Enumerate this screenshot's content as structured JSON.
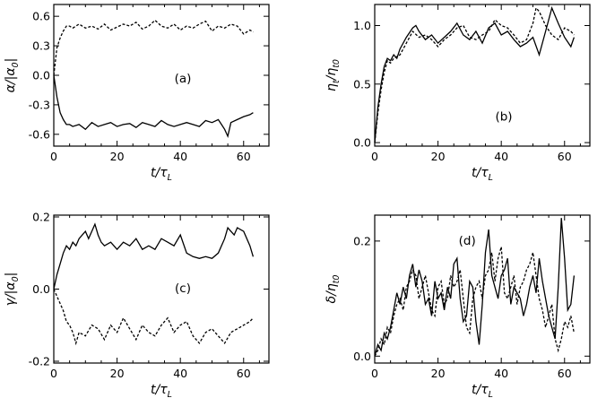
{
  "chart_data": [
    {
      "type": "line",
      "panel_label": "(a)",
      "xlabel": {
        "main": "t/τ",
        "sub": "L"
      },
      "ylabel": {
        "main": "α/|α",
        "sub": "0",
        "tail": "|"
      },
      "xlim": [
        0,
        68
      ],
      "ylim": [
        -0.72,
        0.72
      ],
      "xticks": [
        0,
        20,
        40,
        60
      ],
      "xtick_labels": [
        "0",
        "20",
        "40",
        "60"
      ],
      "yticks": [
        0.6,
        0.3,
        0.0,
        -0.3,
        -0.6
      ],
      "ytick_labels": [
        "0.6",
        "0.3",
        "0.0",
        "-0.3",
        "-0.6"
      ],
      "series": [
        {
          "style": "solid",
          "x": [
            0,
            1,
            2,
            3,
            4,
            5,
            6,
            8,
            10,
            12,
            14,
            16,
            18,
            20,
            22,
            24,
            26,
            28,
            30,
            32,
            34,
            36,
            38,
            40,
            42,
            44,
            46,
            48,
            50,
            52,
            53,
            54,
            55,
            56,
            58,
            60,
            62,
            63
          ],
          "y": [
            0,
            -0.22,
            -0.38,
            -0.45,
            -0.5,
            -0.5,
            -0.52,
            -0.5,
            -0.55,
            -0.48,
            -0.52,
            -0.5,
            -0.48,
            -0.52,
            -0.5,
            -0.49,
            -0.53,
            -0.48,
            -0.5,
            -0.52,
            -0.46,
            -0.5,
            -0.52,
            -0.5,
            -0.48,
            -0.5,
            -0.52,
            -0.46,
            -0.48,
            -0.45,
            -0.5,
            -0.55,
            -0.62,
            -0.48,
            -0.45,
            -0.42,
            -0.4,
            -0.38
          ]
        },
        {
          "style": "dashed",
          "x": [
            0,
            1,
            2,
            3,
            4,
            5,
            6,
            8,
            10,
            12,
            14,
            16,
            18,
            20,
            22,
            24,
            26,
            28,
            30,
            32,
            34,
            36,
            38,
            40,
            42,
            44,
            46,
            48,
            50,
            52,
            54,
            56,
            58,
            60,
            62,
            63
          ],
          "y": [
            0,
            0.28,
            0.38,
            0.45,
            0.5,
            0.5,
            0.48,
            0.52,
            0.48,
            0.5,
            0.47,
            0.52,
            0.46,
            0.49,
            0.52,
            0.5,
            0.54,
            0.47,
            0.5,
            0.56,
            0.5,
            0.48,
            0.52,
            0.46,
            0.5,
            0.48,
            0.52,
            0.55,
            0.45,
            0.5,
            0.48,
            0.52,
            0.5,
            0.42,
            0.46,
            0.44
          ]
        }
      ]
    },
    {
      "type": "line",
      "panel_label": "(b)",
      "xlabel": {
        "main": "t/τ",
        "sub": "L"
      },
      "ylabel": {
        "main": "η",
        "sub": "t",
        "tail": "/η",
        "sub2": "t0"
      },
      "xlim": [
        0,
        68
      ],
      "ylim": [
        -0.03,
        1.18
      ],
      "xticks": [
        0,
        20,
        40,
        60
      ],
      "xtick_labels": [
        "0",
        "20",
        "40",
        "60"
      ],
      "yticks": [
        1.0,
        0.5,
        0.0
      ],
      "ytick_labels": [
        "1.0",
        "0.5",
        "0.0"
      ],
      "series": [
        {
          "style": "solid",
          "x": [
            0,
            1,
            2,
            3,
            4,
            5,
            6,
            7,
            8,
            10,
            12,
            13,
            14,
            16,
            18,
            20,
            22,
            24,
            26,
            28,
            30,
            32,
            34,
            36,
            38,
            40,
            42,
            44,
            46,
            48,
            50,
            52,
            54,
            55,
            56,
            58,
            60,
            62,
            63
          ],
          "y": [
            0,
            0.3,
            0.5,
            0.65,
            0.72,
            0.7,
            0.75,
            0.72,
            0.8,
            0.9,
            0.98,
            1.0,
            0.95,
            0.88,
            0.92,
            0.85,
            0.9,
            0.95,
            1.02,
            0.92,
            0.88,
            0.95,
            0.85,
            0.98,
            1.02,
            0.92,
            0.95,
            0.88,
            0.82,
            0.85,
            0.9,
            0.75,
            0.95,
            1.05,
            1.15,
            1.02,
            0.9,
            0.82,
            0.9
          ]
        },
        {
          "style": "dashed",
          "x": [
            0,
            1,
            2,
            3,
            4,
            5,
            6,
            8,
            10,
            12,
            14,
            16,
            18,
            20,
            22,
            24,
            26,
            28,
            30,
            32,
            34,
            36,
            38,
            40,
            42,
            44,
            46,
            48,
            50,
            51,
            52,
            54,
            56,
            58,
            60,
            62,
            63
          ],
          "y": [
            0,
            0.25,
            0.45,
            0.6,
            0.7,
            0.68,
            0.72,
            0.75,
            0.85,
            0.95,
            0.9,
            0.92,
            0.88,
            0.82,
            0.88,
            0.92,
            0.98,
            1.0,
            0.9,
            0.88,
            0.92,
            0.95,
            1.05,
            1.0,
            0.98,
            0.92,
            0.85,
            0.88,
            1.02,
            1.15,
            1.12,
            1.0,
            0.92,
            0.88,
            0.98,
            0.95,
            0.92
          ]
        }
      ]
    },
    {
      "type": "line",
      "panel_label": "(c)",
      "xlabel": {
        "main": "t/τ",
        "sub": "L"
      },
      "ylabel": {
        "main": "γ/|α",
        "sub": "0",
        "tail": "|"
      },
      "xlim": [
        0,
        68
      ],
      "ylim": [
        -0.205,
        0.205
      ],
      "xticks": [
        0,
        20,
        40,
        60
      ],
      "xtick_labels": [
        "0",
        "20",
        "40",
        "60"
      ],
      "yticks": [
        0.2,
        0.0,
        -0.2
      ],
      "ytick_labels": [
        "0.2",
        "0.0",
        "-0.2"
      ],
      "series": [
        {
          "style": "solid",
          "x": [
            0,
            1,
            2,
            3,
            4,
            5,
            6,
            7,
            8,
            9,
            10,
            11,
            12,
            13,
            14,
            15,
            16,
            18,
            20,
            22,
            24,
            26,
            28,
            30,
            32,
            34,
            36,
            38,
            40,
            42,
            44,
            46,
            48,
            50,
            52,
            54,
            55,
            56,
            57,
            58,
            60,
            62,
            63
          ],
          "y": [
            0,
            0.04,
            0.07,
            0.1,
            0.12,
            0.11,
            0.13,
            0.12,
            0.14,
            0.15,
            0.16,
            0.14,
            0.16,
            0.18,
            0.15,
            0.13,
            0.12,
            0.13,
            0.11,
            0.13,
            0.12,
            0.14,
            0.11,
            0.12,
            0.11,
            0.14,
            0.13,
            0.12,
            0.15,
            0.1,
            0.09,
            0.085,
            0.09,
            0.085,
            0.1,
            0.14,
            0.17,
            0.16,
            0.15,
            0.17,
            0.16,
            0.12,
            0.09
          ]
        },
        {
          "style": "dashed",
          "x": [
            0,
            1,
            2,
            3,
            4,
            5,
            6,
            7,
            8,
            10,
            12,
            14,
            16,
            18,
            20,
            22,
            24,
            26,
            28,
            30,
            32,
            34,
            36,
            38,
            40,
            42,
            44,
            46,
            48,
            50,
            52,
            54,
            56,
            58,
            60,
            62,
            63
          ],
          "y": [
            0,
            -0.02,
            -0.04,
            -0.06,
            -0.09,
            -0.1,
            -0.12,
            -0.15,
            -0.12,
            -0.13,
            -0.1,
            -0.11,
            -0.14,
            -0.1,
            -0.12,
            -0.08,
            -0.11,
            -0.14,
            -0.1,
            -0.12,
            -0.13,
            -0.1,
            -0.08,
            -0.12,
            -0.1,
            -0.09,
            -0.13,
            -0.15,
            -0.12,
            -0.11,
            -0.13,
            -0.15,
            -0.12,
            -0.11,
            -0.1,
            -0.09,
            -0.08
          ]
        }
      ]
    },
    {
      "type": "line",
      "panel_label": "(d)",
      "xlabel": {
        "main": "t/τ",
        "sub": "L"
      },
      "ylabel": {
        "main": "δ/η",
        "sub": "t0",
        "tail": ""
      },
      "xlim": [
        0,
        68
      ],
      "ylim": [
        -0.012,
        0.245
      ],
      "xticks": [
        0,
        20,
        40,
        60
      ],
      "xtick_labels": [
        "0",
        "20",
        "40",
        "60"
      ],
      "yticks": [
        0.2,
        0.0
      ],
      "ytick_labels": [
        "0.2",
        "0.0"
      ],
      "series": [
        {
          "style": "solid",
          "x": [
            0,
            1,
            2,
            3,
            4,
            5,
            6,
            7,
            8,
            9,
            10,
            11,
            12,
            13,
            14,
            15,
            16,
            17,
            18,
            19,
            20,
            21,
            22,
            23,
            24,
            25,
            26,
            27,
            28,
            29,
            30,
            31,
            32,
            33,
            34,
            35,
            36,
            37,
            38,
            39,
            40,
            41,
            42,
            43,
            44,
            45,
            46,
            47,
            48,
            49,
            50,
            51,
            52,
            53,
            54,
            55,
            56,
            57,
            58,
            59,
            60,
            61,
            62,
            63
          ],
          "y": [
            0,
            0.02,
            0.01,
            0.04,
            0.03,
            0.05,
            0.08,
            0.11,
            0.09,
            0.12,
            0.1,
            0.14,
            0.16,
            0.12,
            0.15,
            0.13,
            0.09,
            0.1,
            0.07,
            0.13,
            0.1,
            0.11,
            0.08,
            0.12,
            0.1,
            0.16,
            0.17,
            0.1,
            0.06,
            0.07,
            0.13,
            0.12,
            0.06,
            0.02,
            0.09,
            0.18,
            0.22,
            0.14,
            0.12,
            0.1,
            0.14,
            0.15,
            0.17,
            0.09,
            0.12,
            0.11,
            0.1,
            0.07,
            0.09,
            0.12,
            0.14,
            0.11,
            0.17,
            0.13,
            0.1,
            0.07,
            0.05,
            0.03,
            0.12,
            0.24,
            0.17,
            0.08,
            0.09,
            0.14
          ]
        },
        {
          "style": "dashed",
          "x": [
            0,
            1,
            2,
            3,
            4,
            5,
            6,
            7,
            8,
            9,
            10,
            11,
            12,
            13,
            14,
            15,
            16,
            17,
            18,
            19,
            20,
            21,
            22,
            23,
            24,
            25,
            26,
            27,
            28,
            29,
            30,
            31,
            32,
            33,
            34,
            35,
            36,
            37,
            38,
            39,
            40,
            41,
            42,
            43,
            44,
            45,
            46,
            47,
            48,
            49,
            50,
            51,
            52,
            53,
            54,
            55,
            56,
            57,
            58,
            59,
            60,
            61,
            62,
            63
          ],
          "y": [
            0,
            0.01,
            0.03,
            0.02,
            0.05,
            0.04,
            0.07,
            0.09,
            0.1,
            0.08,
            0.12,
            0.13,
            0.15,
            0.14,
            0.1,
            0.12,
            0.14,
            0.11,
            0.08,
            0.07,
            0.12,
            0.13,
            0.09,
            0.1,
            0.14,
            0.12,
            0.13,
            0.15,
            0.1,
            0.05,
            0.04,
            0.1,
            0.12,
            0.13,
            0.1,
            0.14,
            0.15,
            0.18,
            0.13,
            0.17,
            0.19,
            0.11,
            0.1,
            0.12,
            0.14,
            0.09,
            0.12,
            0.13,
            0.15,
            0.16,
            0.18,
            0.14,
            0.1,
            0.08,
            0.05,
            0.07,
            0.09,
            0.03,
            0.01,
            0.03,
            0.06,
            0.05,
            0.07,
            0.04
          ]
        }
      ]
    }
  ]
}
